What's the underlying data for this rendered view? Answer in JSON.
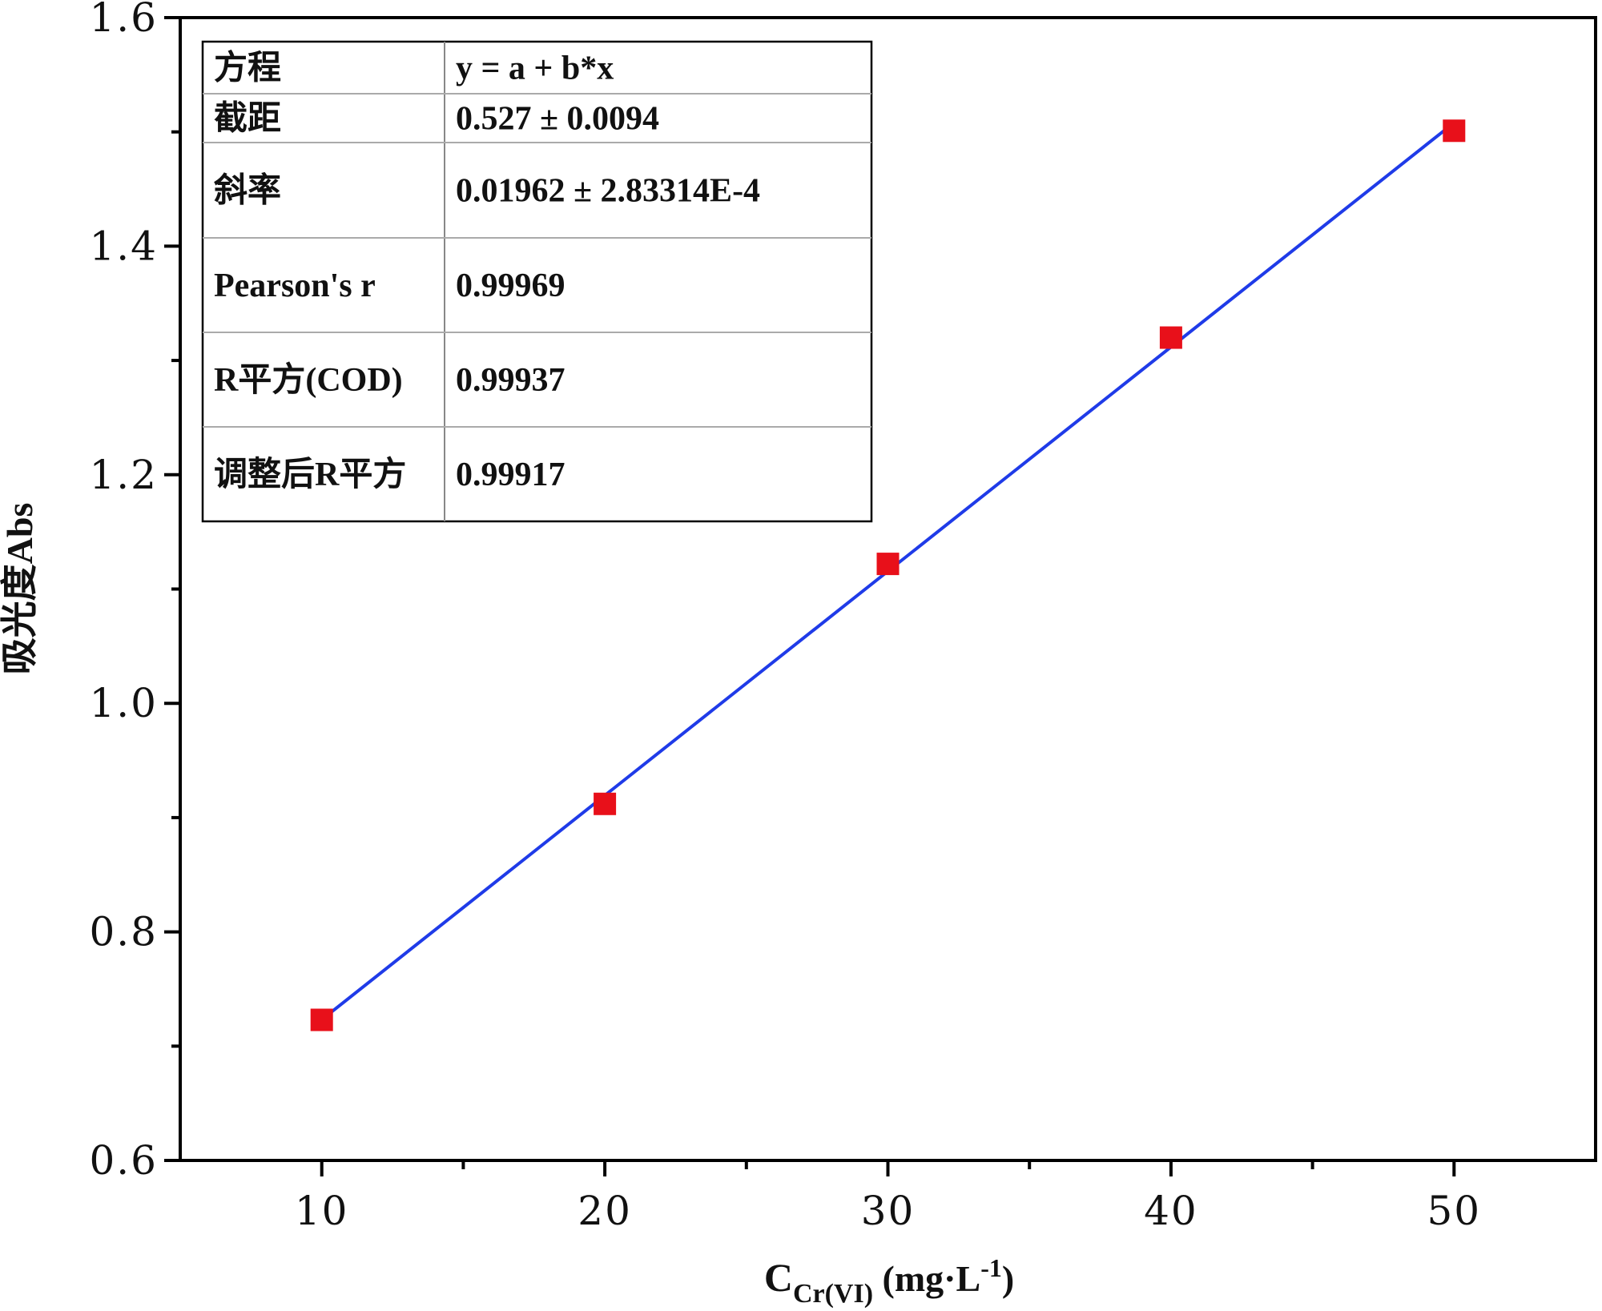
{
  "chart_data": {
    "type": "scatter",
    "x_axis": {
      "label_main": "C",
      "label_sub": "Cr(VI)",
      "label_unit": " (mg·L",
      "label_sup": "-1",
      "label_close": ")",
      "range": [
        5,
        55
      ],
      "major_ticks": [
        10,
        20,
        30,
        40,
        50
      ],
      "minor_ticks": [
        15,
        25,
        35,
        45
      ],
      "tick_labels": [
        "10",
        "20",
        "30",
        "40",
        "50"
      ]
    },
    "y_axis": {
      "label": "吸光度Abs",
      "range": [
        0.6,
        1.6
      ],
      "major_ticks": [
        0.6,
        0.8,
        1.0,
        1.2,
        1.4,
        1.6
      ],
      "minor_ticks": [
        0.7,
        0.9,
        1.1,
        1.3,
        1.5
      ],
      "tick_labels": [
        "0.6",
        "0.8",
        "1.0",
        "1.2",
        "1.4",
        "1.6"
      ]
    },
    "series": [
      {
        "type": "scatter",
        "x": [
          10,
          20,
          30,
          40,
          50
        ],
        "y": [
          0.723,
          0.912,
          1.122,
          1.32,
          1.501
        ],
        "color": "#e8101a",
        "marker": "square"
      },
      {
        "type": "line",
        "fit": "linear",
        "intercept": 0.527,
        "slope": 0.01962,
        "x_range": [
          10,
          50
        ],
        "color": "#1f3be8"
      }
    ],
    "stats_table": {
      "rows": [
        {
          "label": "方程",
          "value": "y = a + b*x"
        },
        {
          "label": "截距",
          "value": "0.527 ± 0.0094"
        },
        {
          "label": "斜率",
          "value": "0.01962 ± 2.83314E-4"
        },
        {
          "label": "Pearson's r",
          "value": "0.99969"
        },
        {
          "label": "R平方(COD)",
          "value": "0.99937"
        },
        {
          "label": "调整后R平方",
          "value": "0.99917"
        }
      ]
    },
    "grid": false,
    "legend": "none"
  }
}
